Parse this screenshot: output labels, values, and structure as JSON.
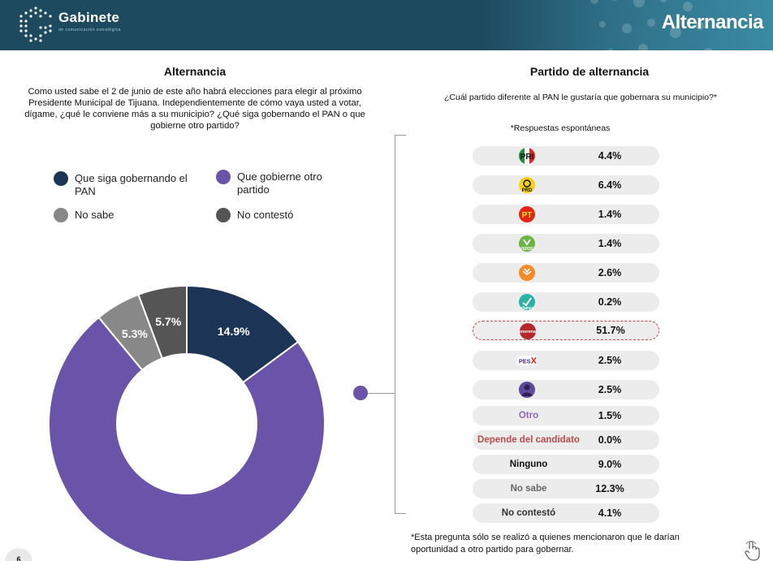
{
  "header": {
    "brand": "Gabinete",
    "brand_sub": "de comunicación estratégica",
    "title": "Alternancia"
  },
  "page_number": "6",
  "left": {
    "title": "Alternancia",
    "question": "Como  usted sabe el 2 de junio de este año habrá elecciones para elegir al próximo Presidente Municipal de Tijuana.  Independientemente de cómo vaya usted a votar, dígame, ¿qué le conviene más a su municipio? ¿Qué siga gobernando el PAN o que gobierne otro partido?"
  },
  "right": {
    "title": "Partido de alternancia",
    "question": "¿Cuál  partido diferente al PAN le gustaría que gobernara su municipio?*",
    "note": "*Respuestas espontáneas",
    "footnote": "*Esta pregunta sólo se realizó a quienes mencionaron que le darían oportunidad a otro partido para gobernar."
  },
  "chart_data": [
    {
      "type": "pie",
      "title": "Alternancia",
      "legend_position": "top",
      "categories": [
        "Que siga gobernando el PAN",
        "Que gobierne otro partido",
        "No sabe",
        "No contestó"
      ],
      "values": [
        14.9,
        74.1,
        5.3,
        5.7
      ],
      "labels": [
        "14.9%",
        "74.1%",
        "5.3%",
        "5.7%"
      ],
      "colors": [
        "#1c3557",
        "#6a54a9",
        "#888888",
        "#555555"
      ],
      "legend_colors": [
        "#1c3557",
        "#6a54a9",
        "#888888",
        "#555555"
      ]
    },
    {
      "type": "table",
      "title": "Partido de alternancia",
      "rows": [
        {
          "party": "PRI",
          "logo": "pri-logo",
          "text": "",
          "value": 4.4,
          "label": "4.4%"
        },
        {
          "party": "PRD",
          "logo": "prd-logo",
          "text": "",
          "value": 6.4,
          "label": "6.4%"
        },
        {
          "party": "PT",
          "logo": "pt-logo",
          "text": "",
          "value": 1.4,
          "label": "1.4%"
        },
        {
          "party": "VERDE",
          "logo": "verde-logo",
          "text": "",
          "value": 1.4,
          "label": "1.4%"
        },
        {
          "party": "MC",
          "logo": "mc-logo",
          "text": "",
          "value": 2.6,
          "label": "2.6%"
        },
        {
          "party": "Nueva Alianza",
          "logo": "nueva-alianza-logo",
          "text": "",
          "value": 0.2,
          "label": "0.2%"
        },
        {
          "party": "morena",
          "logo": "morena-logo",
          "text": "",
          "value": 51.7,
          "label": "51.7%",
          "highlight": true
        },
        {
          "party": "PES",
          "logo": "pes-logo",
          "text": "",
          "value": 2.5,
          "label": "2.5%"
        },
        {
          "party": "Independiente",
          "logo": "candidate-silhouette-logo",
          "text": "",
          "value": 2.5,
          "label": "2.5%"
        },
        {
          "party": "Otro",
          "logo": "",
          "text": "Otro",
          "text_color": "#8b6bb5",
          "value": 1.5,
          "label": "1.5%"
        },
        {
          "party": "Depende del candidato",
          "logo": "",
          "text": "Depende del candidato",
          "text_color": "#b84a4a",
          "value": 0.0,
          "label": "0.0%"
        },
        {
          "party": "Ninguno",
          "logo": "",
          "text": "Ninguno",
          "text_color": "#111111",
          "value": 9.0,
          "label": "9.0%"
        },
        {
          "party": "No sabe",
          "logo": "",
          "text": "No sabe",
          "text_color": "#666666",
          "value": 12.3,
          "label": "12.3%"
        },
        {
          "party": "No contestó",
          "logo": "",
          "text": "No contestó",
          "text_color": "#333333",
          "value": 4.1,
          "label": "4.1%"
        }
      ]
    }
  ]
}
